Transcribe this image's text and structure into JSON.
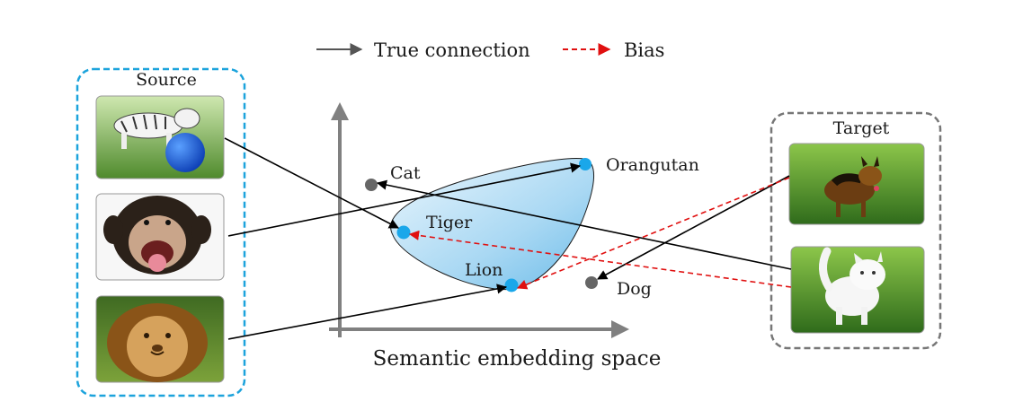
{
  "legend": {
    "true_connection": "True connection",
    "bias": "Bias"
  },
  "source": {
    "title": "Source",
    "images": [
      {
        "name": "tiger",
        "description": "white tiger with blue ball"
      },
      {
        "name": "chimpanzee",
        "description": "laughing chimpanzee"
      },
      {
        "name": "lion",
        "description": "lion face"
      }
    ]
  },
  "target": {
    "title": "Target",
    "images": [
      {
        "name": "dog",
        "description": "german shepherd dog running"
      },
      {
        "name": "cat",
        "description": "white cat running on grass"
      }
    ]
  },
  "embedding": {
    "axis_label": "Semantic embedding space",
    "points": {
      "cat": "Cat",
      "orangutan": "Orangutan",
      "tiger": "Tiger",
      "lion": "Lion",
      "dog": "Dog"
    }
  },
  "colors": {
    "true_connection": "#000000",
    "bias": "#e01010",
    "source_point": "#1aa7ea",
    "target_point": "#666666",
    "source_box": "#1ca3dc",
    "target_box": "#777777"
  }
}
